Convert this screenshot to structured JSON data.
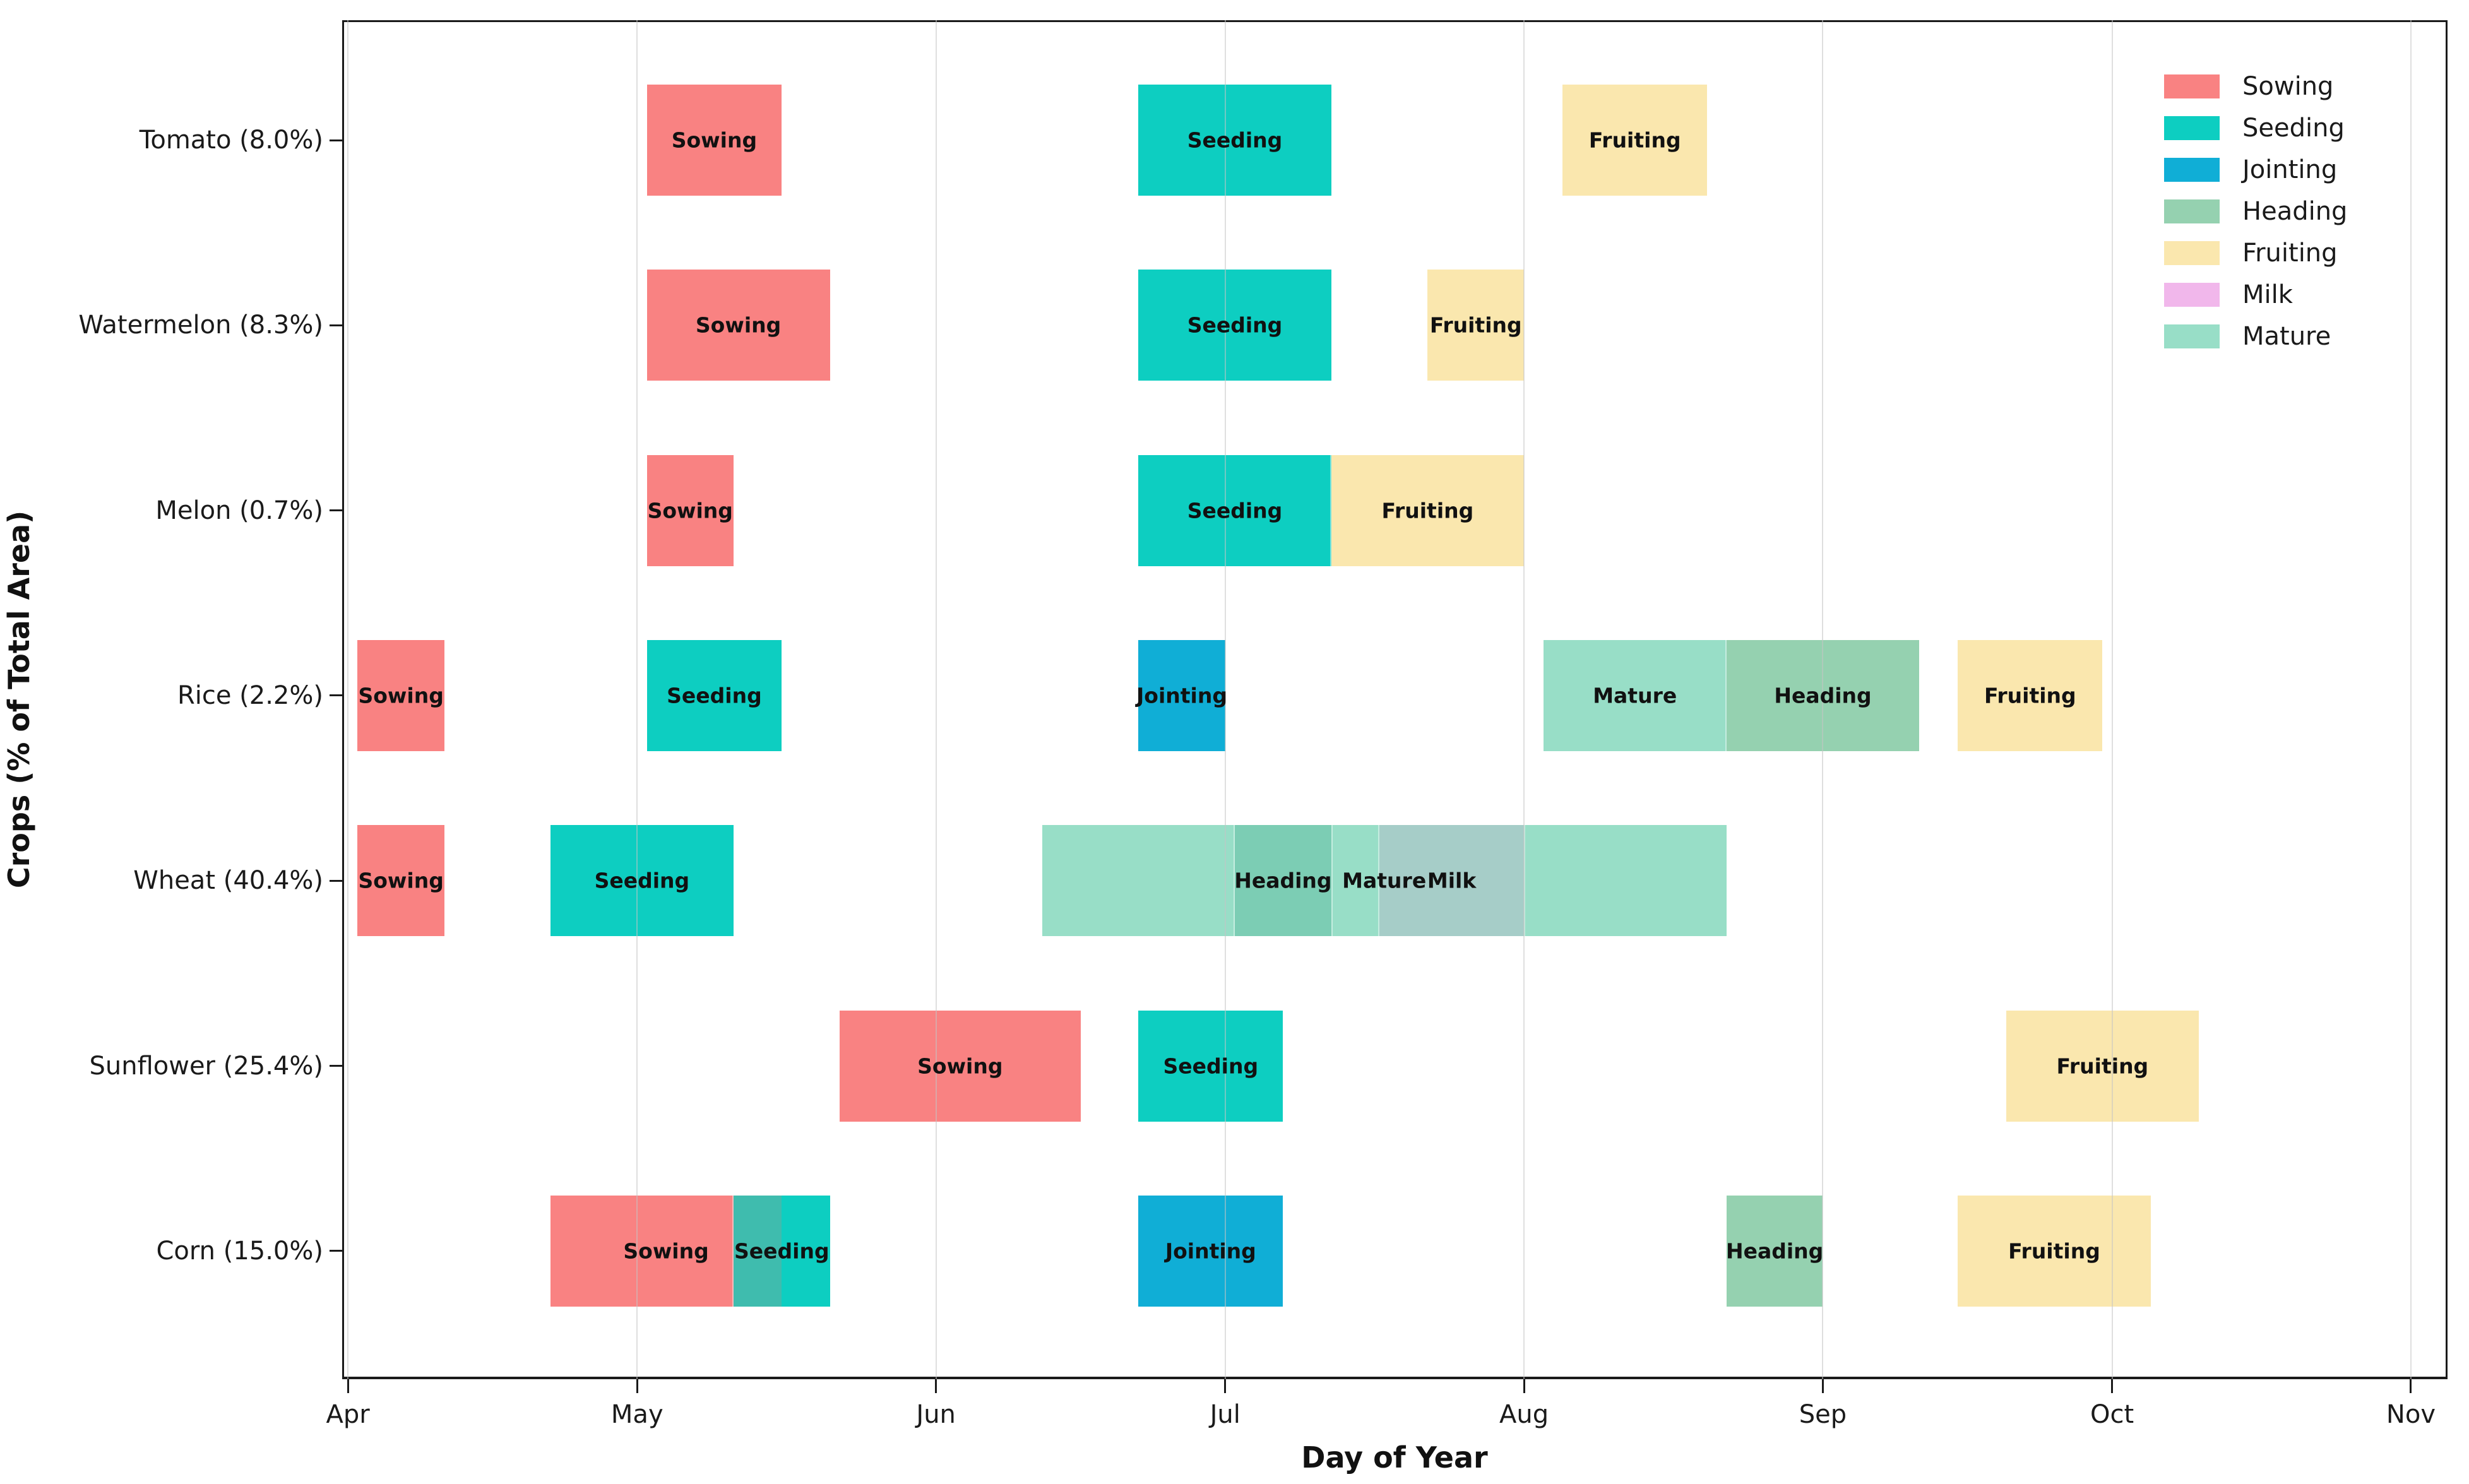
{
  "chart_data": {
    "type": "gantt",
    "title": "",
    "xlabel": "Day of Year",
    "ylabel": "Crops (% of Total Area)",
    "xlim": [
      90.4,
      308.8
    ],
    "grid": true,
    "legend_position": "upper right",
    "background_color": "#ffffff",
    "x_ticks": [
      {
        "label": "Apr",
        "day": 91
      },
      {
        "label": "May",
        "day": 121
      },
      {
        "label": "Jun",
        "day": 152
      },
      {
        "label": "Jul",
        "day": 182
      },
      {
        "label": "Aug",
        "day": 213
      },
      {
        "label": "Sep",
        "day": 244
      },
      {
        "label": "Oct",
        "day": 274
      },
      {
        "label": "Nov",
        "day": 305
      }
    ],
    "phase_colors": {
      "Sowing": "#F98282",
      "Seeding": "#0DCEC1",
      "Jointing": "#10AED6",
      "Heading": "#95D1B0",
      "Fruiting": "#FAE7AE",
      "Milk": "#F1B7EB",
      "Mature": "#98DEC7"
    },
    "overlap_colors": {
      "Sowing+Seeding": "#3FBCAE",
      "Mature+Heading": "#7CCDB4",
      "Mature+Milk": "#A6CDC8"
    },
    "legend_entries": [
      "Sowing",
      "Seeding",
      "Jointing",
      "Heading",
      "Fruiting",
      "Milk",
      "Mature"
    ],
    "rows": [
      {
        "crop": "Tomato (8.0%)",
        "phases": [
          {
            "phase": "Sowing",
            "start_day": 122,
            "end_day": 136
          },
          {
            "phase": "Seeding",
            "start_day": 173,
            "end_day": 193
          },
          {
            "phase": "Fruiting",
            "start_day": 217,
            "end_day": 232
          }
        ]
      },
      {
        "crop": "Watermelon (8.3%)",
        "phases": [
          {
            "phase": "Sowing",
            "start_day": 122,
            "end_day": 141
          },
          {
            "phase": "Seeding",
            "start_day": 173,
            "end_day": 193
          },
          {
            "phase": "Fruiting",
            "start_day": 203,
            "end_day": 213
          }
        ]
      },
      {
        "crop": "Melon (0.7%)",
        "phases": [
          {
            "phase": "Sowing",
            "start_day": 122,
            "end_day": 131
          },
          {
            "phase": "Seeding",
            "start_day": 173,
            "end_day": 193
          },
          {
            "phase": "Fruiting",
            "start_day": 193,
            "end_day": 213
          }
        ]
      },
      {
        "crop": "Rice (2.2%)",
        "phases": [
          {
            "phase": "Sowing",
            "start_day": 92,
            "end_day": 101
          },
          {
            "phase": "Seeding",
            "start_day": 122,
            "end_day": 136
          },
          {
            "phase": "Jointing",
            "start_day": 173,
            "end_day": 182
          },
          {
            "phase": "Mature",
            "start_day": 215,
            "end_day": 234
          },
          {
            "phase": "Heading",
            "start_day": 234,
            "end_day": 254
          },
          {
            "phase": "Fruiting",
            "start_day": 258,
            "end_day": 273
          }
        ]
      },
      {
        "crop": "Wheat (40.4%)",
        "phases": [
          {
            "phase": "Sowing",
            "start_day": 92,
            "end_day": 101
          },
          {
            "phase": "Seeding",
            "start_day": 112,
            "end_day": 131
          },
          {
            "phase": "Mature",
            "start_day": 163,
            "end_day": 234
          },
          {
            "phase": "Heading",
            "start_day": 183,
            "end_day": 193
          },
          {
            "phase": "Milk",
            "start_day": 198,
            "end_day": 213
          }
        ]
      },
      {
        "crop": "Sunflower (25.4%)",
        "phases": [
          {
            "phase": "Sowing",
            "start_day": 142,
            "end_day": 167
          },
          {
            "phase": "Seeding",
            "start_day": 173,
            "end_day": 188
          },
          {
            "phase": "Fruiting",
            "start_day": 263,
            "end_day": 283
          }
        ]
      },
      {
        "crop": "Corn (15.0%)",
        "phases": [
          {
            "phase": "Sowing",
            "start_day": 112,
            "end_day": 136
          },
          {
            "phase": "Seeding",
            "start_day": 131,
            "end_day": 141
          },
          {
            "phase": "Jointing",
            "start_day": 173,
            "end_day": 188
          },
          {
            "phase": "Heading",
            "start_day": 234,
            "end_day": 244
          },
          {
            "phase": "Fruiting",
            "start_day": 258,
            "end_day": 278
          }
        ]
      }
    ]
  }
}
